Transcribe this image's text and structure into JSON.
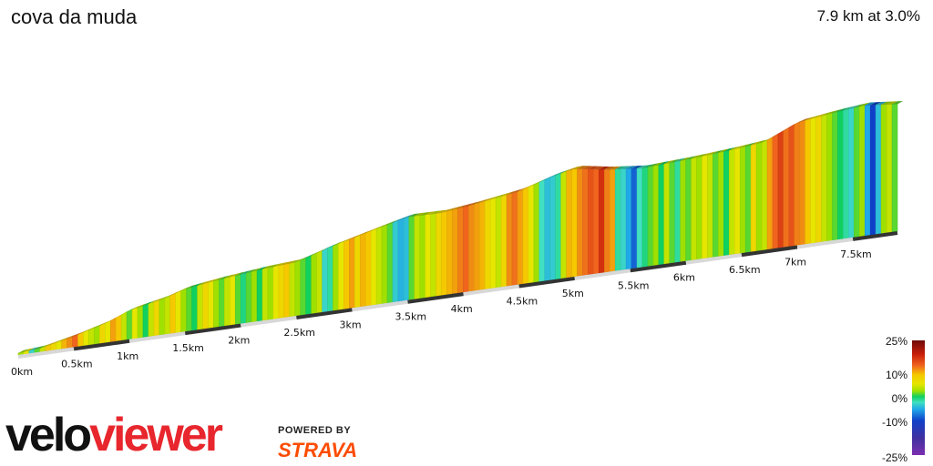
{
  "header": {
    "title": "cova da muda",
    "summary": "7.9 km at 3.0%"
  },
  "legend": {
    "labels": [
      "25%",
      "10%",
      "0%",
      "-10%",
      "-25%"
    ]
  },
  "branding": {
    "velo": "velo",
    "viewer": "viewer",
    "powered_by": "POWERED BY",
    "strava": "STRAVA"
  },
  "chart_data": {
    "type": "area",
    "title": "cova da muda",
    "xlabel": "",
    "ylabel": "",
    "x_unit": "km",
    "x_ticks": [
      "0km",
      "0.5km",
      "1km",
      "1.5km",
      "2km",
      "2.5km",
      "3km",
      "3.5km",
      "4km",
      "4.5km",
      "5km",
      "5.5km",
      "6km",
      "6.5km",
      "7km",
      "7.5km"
    ],
    "xlim": [
      0,
      7.9
    ],
    "color_scale": {
      "min": -25,
      "max": 25,
      "unit": "%"
    },
    "profile_points": [
      {
        "d": 0.0,
        "h": 0
      },
      {
        "d": 0.2,
        "h": 3
      },
      {
        "d": 0.5,
        "h": 16
      },
      {
        "d": 0.8,
        "h": 32
      },
      {
        "d": 1.0,
        "h": 48
      },
      {
        "d": 1.3,
        "h": 60
      },
      {
        "d": 1.5,
        "h": 72
      },
      {
        "d": 1.8,
        "h": 80
      },
      {
        "d": 2.2,
        "h": 88
      },
      {
        "d": 2.5,
        "h": 92
      },
      {
        "d": 2.8,
        "h": 110
      },
      {
        "d": 3.2,
        "h": 130
      },
      {
        "d": 3.5,
        "h": 144
      },
      {
        "d": 3.8,
        "h": 143
      },
      {
        "d": 4.1,
        "h": 150
      },
      {
        "d": 4.5,
        "h": 162
      },
      {
        "d": 4.8,
        "h": 180
      },
      {
        "d": 5.0,
        "h": 188
      },
      {
        "d": 5.3,
        "h": 178
      },
      {
        "d": 5.6,
        "h": 172
      },
      {
        "d": 6.0,
        "h": 176
      },
      {
        "d": 6.4,
        "h": 182
      },
      {
        "d": 6.7,
        "h": 188
      },
      {
        "d": 7.0,
        "h": 214
      },
      {
        "d": 7.3,
        "h": 222
      },
      {
        "d": 7.6,
        "h": 228
      },
      {
        "d": 7.9,
        "h": 222
      }
    ],
    "segment_gradients": [
      2,
      4,
      -4,
      1,
      3,
      6,
      5,
      4,
      7,
      9,
      12,
      6,
      4,
      3,
      2,
      5,
      4,
      8,
      6,
      3,
      1,
      4,
      2,
      0,
      3,
      5,
      2,
      3,
      6,
      4,
      2,
      1,
      0,
      3,
      5,
      4,
      2,
      1,
      3,
      4,
      1,
      -1,
      1,
      2,
      0,
      3,
      2,
      4,
      5,
      6,
      3,
      2,
      1,
      0,
      2,
      3,
      -4,
      -2,
      2,
      4,
      6,
      8,
      5,
      7,
      6,
      4,
      3,
      2,
      1,
      -5,
      -7,
      -6,
      1,
      3,
      2,
      4,
      3,
      5,
      6,
      7,
      8,
      10,
      12,
      9,
      8,
      7,
      5,
      4,
      3,
      5,
      9,
      11,
      8,
      6,
      4,
      2,
      -3,
      -6,
      -5,
      -2,
      3,
      7,
      6,
      9,
      11,
      13,
      12,
      15,
      10,
      8,
      -2,
      -4,
      -8,
      -12,
      -3,
      -1,
      1,
      2,
      0,
      3,
      1,
      -2,
      2,
      1,
      3,
      2,
      4,
      3,
      1,
      2,
      0,
      3,
      4,
      2,
      1,
      5,
      2,
      3,
      8,
      12,
      14,
      11,
      13,
      10,
      9,
      6,
      4,
      5,
      3,
      2,
      1,
      0,
      -2,
      -4,
      1,
      2,
      -8,
      -14,
      -6,
      2,
      3,
      1
    ]
  }
}
